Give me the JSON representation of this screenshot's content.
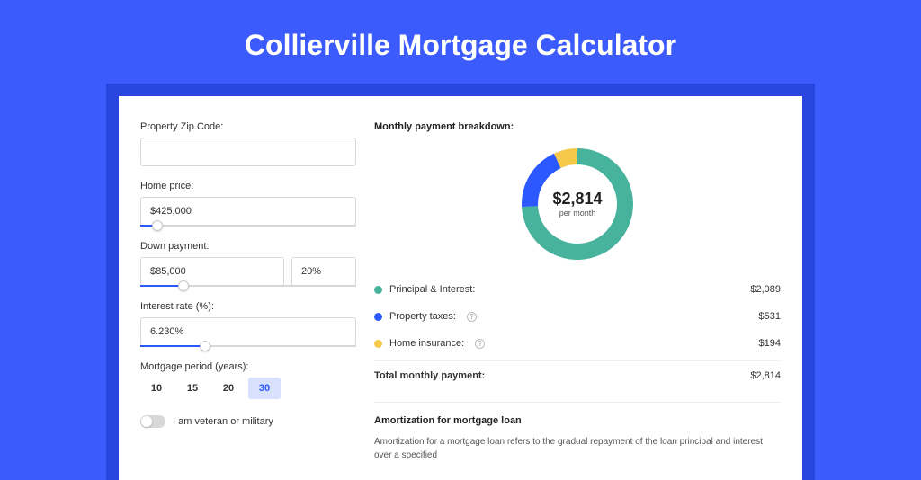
{
  "page": {
    "title": "Collierville Mortgage Calculator",
    "background_color": "#3b5bfd",
    "header_bar_color": "#2947e0",
    "card_background": "#ffffff"
  },
  "form": {
    "zip": {
      "label": "Property Zip Code:",
      "value": ""
    },
    "home_price": {
      "label": "Home price:",
      "value": "$425,000",
      "slider_fill_pct": 8
    },
    "down_payment": {
      "label": "Down payment:",
      "value": "$85,000",
      "percent": "20%",
      "slider_fill_pct": 20
    },
    "interest_rate": {
      "label": "Interest rate (%):",
      "value": "6.230%",
      "slider_fill_pct": 30
    },
    "mortgage_period": {
      "label": "Mortgage period (years):",
      "options": [
        "10",
        "15",
        "20",
        "30"
      ],
      "selected_index": 3
    },
    "veteran": {
      "label": "I am veteran or military",
      "checked": false
    }
  },
  "breakdown": {
    "title": "Monthly payment breakdown:",
    "donut": {
      "center_amount": "$2,814",
      "center_sub": "per month",
      "segments": [
        {
          "name": "principal_interest",
          "value": 2089,
          "color": "#47b39c",
          "pct": 74.2
        },
        {
          "name": "property_taxes",
          "value": 531,
          "color": "#2b59ff",
          "pct": 18.9
        },
        {
          "name": "home_insurance",
          "value": 194,
          "color": "#f5c94a",
          "pct": 6.9
        }
      ],
      "ring_width": 18,
      "diameter": 124,
      "background_color": "#ffffff"
    },
    "items": [
      {
        "label": "Principal & Interest:",
        "value": "$2,089",
        "color": "#47b39c",
        "info": false
      },
      {
        "label": "Property taxes:",
        "value": "$531",
        "color": "#2b59ff",
        "info": true
      },
      {
        "label": "Home insurance:",
        "value": "$194",
        "color": "#f5c94a",
        "info": true
      }
    ],
    "total": {
      "label": "Total monthly payment:",
      "value": "$2,814"
    }
  },
  "amortization": {
    "title": "Amortization for mortgage loan",
    "text": "Amortization for a mortgage loan refers to the gradual repayment of the loan principal and interest over a specified"
  }
}
